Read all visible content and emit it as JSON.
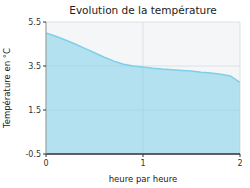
{
  "chart_data": {
    "type": "area",
    "title": "Evolution de la température",
    "xlabel": "heure par heure",
    "ylabel": "Température en °C",
    "x": [
      0.0,
      0.1,
      0.2,
      0.3,
      0.4,
      0.5,
      0.6,
      0.7,
      0.8,
      0.9,
      1.0,
      1.1,
      1.2,
      1.3,
      1.4,
      1.5,
      1.6,
      1.7,
      1.8,
      1.9,
      2.0
    ],
    "values": [
      5.0,
      4.85,
      4.68,
      4.5,
      4.3,
      4.1,
      3.9,
      3.72,
      3.58,
      3.5,
      3.45,
      3.4,
      3.36,
      3.33,
      3.3,
      3.27,
      3.22,
      3.18,
      3.12,
      3.05,
      2.75
    ],
    "color": "#7dd0e8",
    "xlim": [
      0,
      2
    ],
    "ylim": [
      -0.5,
      5.5
    ],
    "xticks": [
      0,
      1,
      2
    ],
    "yticks": [
      -0.5,
      1.5,
      3.5,
      5.5
    ],
    "grid": true
  }
}
